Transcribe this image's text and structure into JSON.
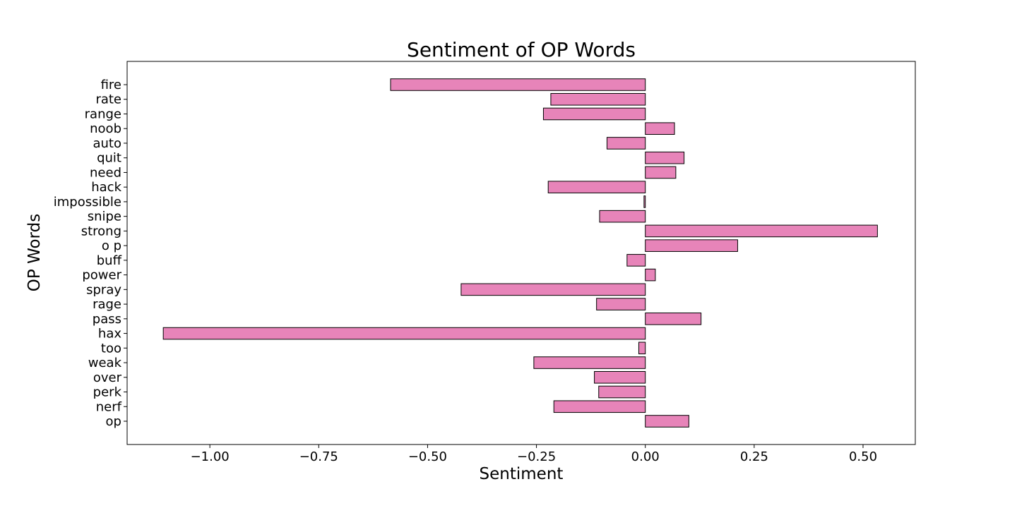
{
  "chart_data": {
    "type": "bar",
    "orientation": "horizontal",
    "title": "Sentiment of OP Words",
    "xlabel": "Sentiment",
    "ylabel": "OP Words",
    "xlim": [
      -1.19,
      0.62
    ],
    "xticks": [
      -1.0,
      -0.75,
      -0.5,
      -0.25,
      0.0,
      0.25,
      0.5
    ],
    "xtick_labels": [
      "−1.00",
      "−0.75",
      "−0.50",
      "−0.25",
      "0.00",
      "0.25",
      "0.50"
    ],
    "grid": false,
    "bar_color": "#e784b9",
    "edge_color": "#000000",
    "categories": [
      "op",
      "nerf",
      "perk",
      "over",
      "weak",
      "too",
      "hax",
      "pass",
      "rage",
      "spray",
      "power",
      "buff",
      "o p",
      "strong",
      "snipe",
      "impossible",
      "hack",
      "need",
      "quit",
      "auto",
      "noob",
      "range",
      "rate",
      "fire"
    ],
    "values": [
      0.1,
      -0.21,
      -0.107,
      -0.117,
      -0.256,
      -0.015,
      -1.107,
      0.128,
      -0.112,
      -0.423,
      0.023,
      -0.042,
      0.212,
      0.533,
      -0.105,
      -0.003,
      -0.223,
      0.07,
      0.089,
      -0.088,
      0.067,
      -0.234,
      -0.217,
      -0.585
    ]
  }
}
